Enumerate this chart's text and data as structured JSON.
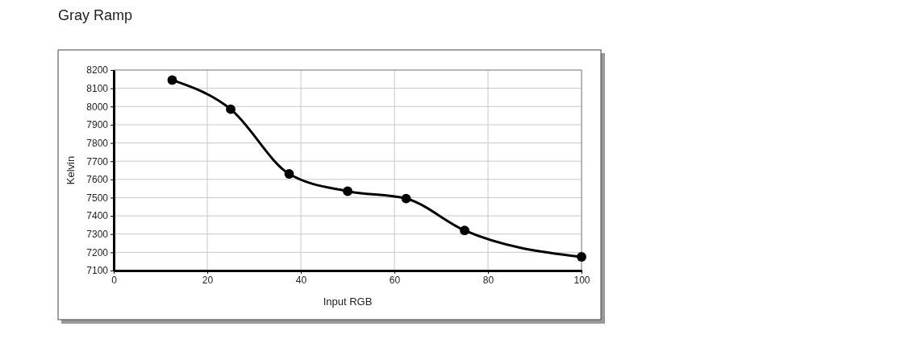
{
  "chart_data": {
    "type": "line",
    "title": "Gray Ramp",
    "xlabel": "Input RGB",
    "ylabel": "Kelvin",
    "x": [
      12.5,
      25,
      37.5,
      50,
      62.5,
      75,
      100
    ],
    "series": [
      {
        "color": "#000000",
        "values": [
          8145,
          7985,
          7630,
          7535,
          7495,
          7320,
          7175
        ]
      }
    ],
    "xlim": [
      0,
      100
    ],
    "xticks": [
      0,
      20,
      40,
      60,
      80,
      100
    ],
    "ylim": [
      7100,
      8200
    ],
    "yticks": [
      7100,
      7200,
      7300,
      7400,
      7500,
      7600,
      7700,
      7800,
      7900,
      8000,
      8100,
      8200
    ],
    "grid": true,
    "marker": "circle",
    "line_style": "solid"
  }
}
